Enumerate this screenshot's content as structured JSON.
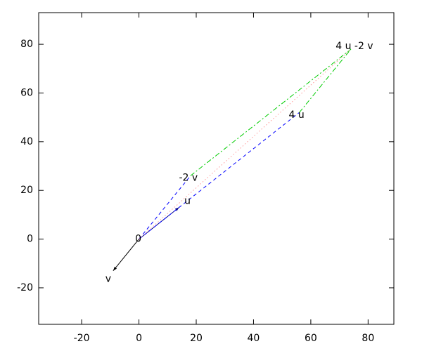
{
  "chart_data": {
    "type": "vector",
    "xlim": [
      -35,
      89
    ],
    "ylim": [
      -35,
      93
    ],
    "xticks": [
      -20,
      0,
      20,
      40,
      60,
      80
    ],
    "yticks": [
      -20,
      0,
      20,
      40,
      60,
      80
    ],
    "segments": [
      {
        "x": [
          0,
          -9
        ],
        "y": [
          0,
          -13
        ],
        "color": "#000000",
        "dash": "solid",
        "arrow": true
      },
      {
        "x": [
          0,
          14
        ],
        "y": [
          0,
          13
        ],
        "color": "#000080",
        "dash": "solid",
        "arrow": true
      },
      {
        "x": [
          0,
          18
        ],
        "y": [
          0,
          26
        ],
        "color": "#0000ff",
        "dash": "dashed",
        "arrow": false
      },
      {
        "x": [
          0,
          56
        ],
        "y": [
          0,
          52
        ],
        "color": "#0000ff",
        "dash": "dashed",
        "arrow": false
      },
      {
        "x": [
          18,
          74
        ],
        "y": [
          26,
          78
        ],
        "color": "#00cc00",
        "dash": "dashdot",
        "arrow": false
      },
      {
        "x": [
          56,
          74
        ],
        "y": [
          52,
          78
        ],
        "color": "#00cc00",
        "dash": "dashdot",
        "arrow": false
      },
      {
        "x": [
          0,
          74
        ],
        "y": [
          0,
          78
        ],
        "color": "#ff9999",
        "dash": "dotted",
        "arrow": false
      }
    ],
    "points": [
      {
        "label": "0",
        "x": 0,
        "y": 0
      },
      {
        "label": "u",
        "x": 14,
        "y": 13
      },
      {
        "label": "v",
        "x": -9,
        "y": -13
      },
      {
        "label": "-2 v",
        "x": 18,
        "y": 26
      },
      {
        "label": "4 u",
        "x": 56,
        "y": 52
      },
      {
        "label": "4 u -2 v",
        "x": 74,
        "y": 78
      }
    ]
  }
}
